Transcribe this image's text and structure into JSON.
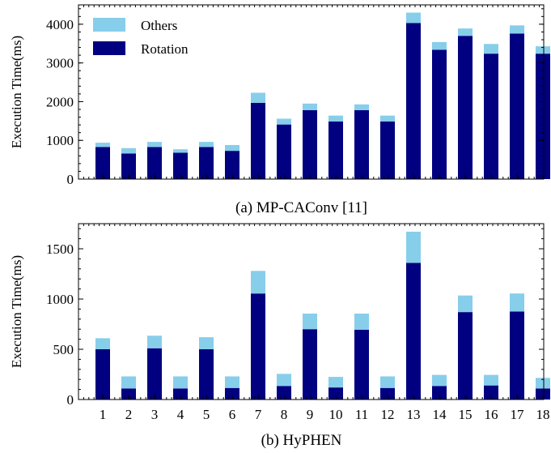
{
  "colors": {
    "others": "#87ceeb",
    "rotation": "#000080"
  },
  "chart_data": [
    {
      "type": "bar",
      "stacked": true,
      "caption": "(a) MP-CAConv [11]",
      "ylabel": "Execution Time(ms)",
      "ylim": [
        0,
        4500
      ],
      "yticks": [
        0,
        1000,
        2000,
        3000,
        4000
      ],
      "categories": [
        "1",
        "2",
        "3",
        "4",
        "5",
        "6",
        "7",
        "8",
        "9",
        "10",
        "11",
        "12",
        "13",
        "14",
        "15",
        "16",
        "17",
        "18"
      ],
      "show_category_labels": false,
      "legend": {
        "position": "top-left",
        "entries": [
          "Others",
          "Rotation"
        ]
      },
      "series": [
        {
          "name": "Rotation",
          "values": [
            830,
            660,
            830,
            680,
            830,
            730,
            1970,
            1410,
            1780,
            1490,
            1780,
            1490,
            4030,
            3340,
            3700,
            3240,
            3760,
            3240
          ]
        },
        {
          "name": "Others",
          "values": [
            110,
            140,
            130,
            90,
            130,
            150,
            260,
            150,
            170,
            150,
            150,
            150,
            270,
            200,
            190,
            250,
            210,
            190
          ]
        }
      ]
    },
    {
      "type": "bar",
      "stacked": true,
      "caption": "(b) HyPHEN",
      "ylabel": "Execution Time(ms)",
      "ylim": [
        0,
        1750
      ],
      "yticks": [
        0,
        500,
        1000,
        1500
      ],
      "categories": [
        "1",
        "2",
        "3",
        "4",
        "5",
        "6",
        "7",
        "8",
        "9",
        "10",
        "11",
        "12",
        "13",
        "14",
        "15",
        "16",
        "17",
        "18"
      ],
      "show_category_labels": true,
      "series": [
        {
          "name": "Rotation",
          "values": [
            500,
            110,
            510,
            110,
            500,
            115,
            1055,
            135,
            700,
            120,
            695,
            115,
            1360,
            135,
            870,
            140,
            875,
            110
          ]
        },
        {
          "name": "Others",
          "values": [
            110,
            120,
            125,
            120,
            120,
            115,
            225,
            120,
            155,
            105,
            160,
            115,
            310,
            110,
            165,
            105,
            180,
            105
          ]
        }
      ]
    }
  ]
}
